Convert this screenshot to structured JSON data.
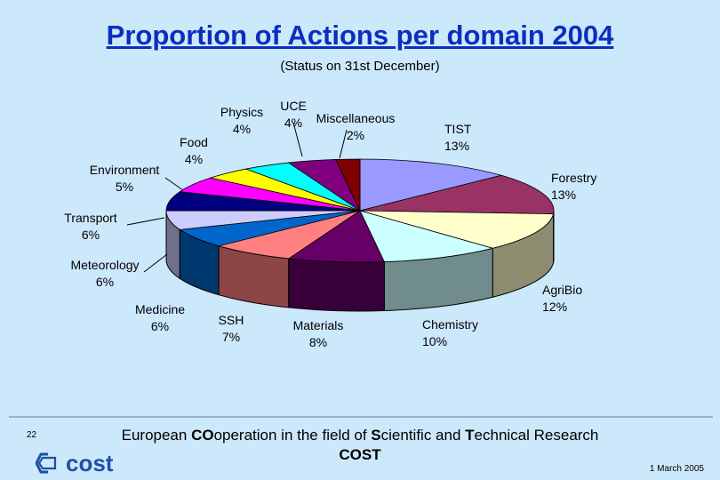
{
  "title": "Proportion of Actions per domain 2004",
  "subtitle": "(Status on 31st December)",
  "chart_data": {
    "type": "pie",
    "title": "Proportion of Actions per domain 2004",
    "subtitle": "(Status on 31st December)",
    "slices": [
      {
        "label": "TIST",
        "value": 13,
        "text": "13%",
        "color": "#9999ff"
      },
      {
        "label": "Forestry",
        "value": 13,
        "text": "13%",
        "color": "#993366"
      },
      {
        "label": "AgriBio",
        "value": 12,
        "text": "12%",
        "color": "#ffffcc"
      },
      {
        "label": "Chemistry",
        "value": 10,
        "text": "10%",
        "color": "#ccffff"
      },
      {
        "label": "Materials",
        "value": 8,
        "text": "8%",
        "color": "#660066"
      },
      {
        "label": "SSH",
        "value": 7,
        "text": "7%",
        "color": "#ff8080"
      },
      {
        "label": "Medicine",
        "value": 6,
        "text": "6%",
        "color": "#0066cc"
      },
      {
        "label": "Meteorology",
        "value": 6,
        "text": "6%",
        "color": "#ccccff"
      },
      {
        "label": "Transport",
        "value": 6,
        "text": "6%",
        "color": "#000080"
      },
      {
        "label": "Environment",
        "value": 5,
        "text": "5%",
        "color": "#ff00ff"
      },
      {
        "label": "Food",
        "value": 4,
        "text": "4%",
        "color": "#ffff00"
      },
      {
        "label": "Physics",
        "value": 4,
        "text": "4%",
        "color": "#00ffff"
      },
      {
        "label": "UCE",
        "value": 4,
        "text": "4%",
        "color": "#800080"
      },
      {
        "label": "Miscellaneous",
        "value": 2,
        "text": "2%",
        "color": "#800000"
      }
    ]
  },
  "footer": {
    "slide_number": "22",
    "text_parts": [
      "European ",
      "CO",
      "operation in the field of ",
      "S",
      "cientific and ",
      "T",
      "echnical Research"
    ],
    "org": "COST",
    "date": "1 March 2005",
    "logo_text": "cost"
  }
}
